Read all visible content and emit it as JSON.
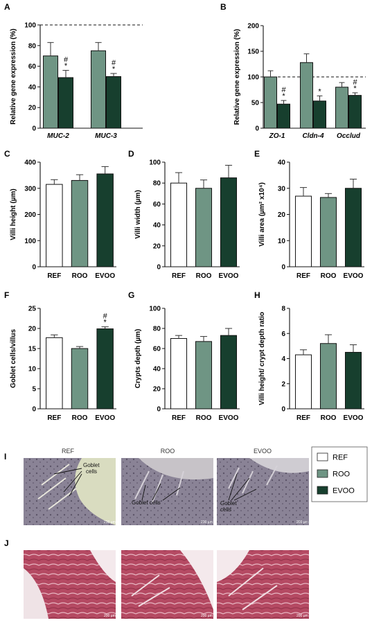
{
  "colors": {
    "REF": "#ffffff",
    "ROO": "#6f9584",
    "EVOO": "#173f2e"
  },
  "legend": [
    {
      "label": "REF",
      "color": "#ffffff"
    },
    {
      "label": "ROO",
      "color": "#6f9584"
    },
    {
      "label": "EVOO",
      "color": "#173f2e"
    }
  ],
  "chart_data": [
    {
      "panel": "A",
      "type": "bar",
      "ylabel": "Relative gene expression (%)",
      "ylim": [
        0,
        100
      ],
      "yticks": [
        0,
        20,
        40,
        60,
        80,
        100
      ],
      "reference_line": 100,
      "categories": [
        "MUC-2",
        "MUC-3"
      ],
      "series": [
        {
          "name": "ROO",
          "values": [
            70,
            75
          ],
          "errors": [
            13,
            8
          ]
        },
        {
          "name": "EVOO",
          "values": [
            49,
            50
          ],
          "errors": [
            7,
            3
          ],
          "marks": [
            "#\n*",
            "#\n*"
          ]
        }
      ]
    },
    {
      "panel": "B",
      "type": "bar",
      "ylabel": "Relative gene expression (%)",
      "ylim": [
        0,
        200
      ],
      "yticks": [
        0,
        50,
        100,
        150,
        200
      ],
      "reference_line": 100,
      "categories": [
        "ZO-1",
        "Cldn-4",
        "Occlud"
      ],
      "series": [
        {
          "name": "ROO",
          "values": [
            100,
            128,
            80
          ],
          "errors": [
            12,
            17,
            9
          ]
        },
        {
          "name": "EVOO",
          "values": [
            47,
            53,
            64
          ],
          "errors": [
            7,
            10,
            5
          ],
          "marks": [
            "#\n*",
            "*",
            "#\n*"
          ]
        }
      ]
    },
    {
      "panel": "C",
      "type": "bar",
      "ylabel": "Villi height (µm)",
      "ylim": [
        0,
        400
      ],
      "yticks": [
        0,
        100,
        200,
        300,
        400
      ],
      "categories": [
        "REF",
        "ROO",
        "EVOO"
      ],
      "values": [
        315,
        330,
        355
      ],
      "errors": [
        18,
        22,
        28
      ]
    },
    {
      "panel": "D",
      "type": "bar",
      "ylabel": "Villi width (µm)",
      "ylim": [
        0,
        100
      ],
      "yticks": [
        0,
        20,
        40,
        60,
        80,
        100
      ],
      "categories": [
        "REF",
        "ROO",
        "EVOO"
      ],
      "values": [
        80,
        75,
        85
      ],
      "errors": [
        10,
        8,
        12
      ]
    },
    {
      "panel": "E",
      "type": "bar",
      "ylabel": "Villi area (µm² x10⁴)",
      "ylim": [
        0,
        40
      ],
      "yticks": [
        0,
        10,
        20,
        30,
        40
      ],
      "categories": [
        "REF",
        "ROO",
        "EVOO"
      ],
      "values": [
        27,
        26.5,
        30
      ],
      "errors": [
        3.3,
        1.5,
        3.5
      ]
    },
    {
      "panel": "F",
      "type": "bar",
      "ylabel": "Goblet cells/villus",
      "ylim": [
        0,
        25
      ],
      "yticks": [
        0,
        5,
        10,
        15,
        20,
        25
      ],
      "categories": [
        "REF",
        "ROO",
        "EVOO"
      ],
      "values": [
        17.7,
        15,
        19.9
      ],
      "errors": [
        0.7,
        0.5,
        0.5
      ],
      "marks": [
        "",
        "",
        "#\n*"
      ]
    },
    {
      "panel": "G",
      "type": "bar",
      "ylabel": "Crypts depth (µm)",
      "ylim": [
        0,
        100
      ],
      "yticks": [
        0,
        20,
        40,
        60,
        80,
        100
      ],
      "categories": [
        "REF",
        "ROO",
        "EVOO"
      ],
      "values": [
        70,
        67,
        73
      ],
      "errors": [
        3,
        5,
        7
      ]
    },
    {
      "panel": "H",
      "type": "bar",
      "ylabel": "Villi height/ crypt depth ratio",
      "ylim": [
        0,
        8
      ],
      "yticks": [
        0,
        2,
        4,
        6,
        8
      ],
      "categories": [
        "REF",
        "ROO",
        "EVOO"
      ],
      "values": [
        4.3,
        5.2,
        4.5
      ],
      "errors": [
        0.4,
        0.7,
        0.6
      ]
    }
  ],
  "histology": {
    "row_I": {
      "label": "I",
      "titles": [
        "REF",
        "ROO",
        "EVOO"
      ],
      "annotations": [
        "Goblet\ncells",
        "Goblet cells",
        "Goblet\ncells"
      ],
      "scale": [
        "200 µm",
        "200 µm",
        "200 µm"
      ]
    },
    "row_J": {
      "label": "J",
      "scale": [
        "200 µm",
        "200 µm",
        "200 µm"
      ]
    }
  }
}
